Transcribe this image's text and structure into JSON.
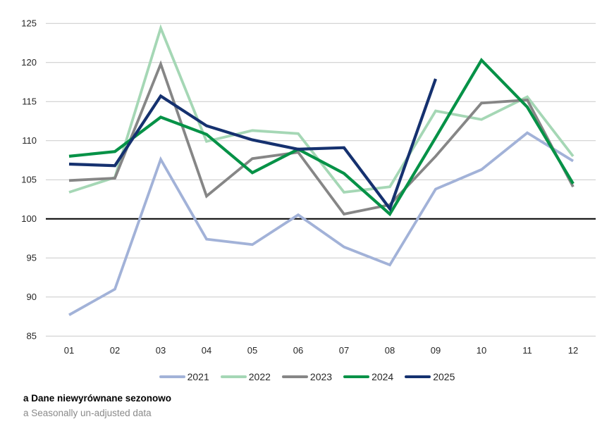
{
  "chart_data": {
    "type": "line",
    "title": "",
    "xlabel": "",
    "ylabel": "",
    "x_labels": [
      "01",
      "02",
      "03",
      "04",
      "05",
      "06",
      "07",
      "08",
      "09",
      "10",
      "11",
      "12"
    ],
    "y_ticks": [
      85,
      90,
      95,
      100,
      105,
      110,
      115,
      120,
      125
    ],
    "ylim": [
      85,
      125
    ],
    "baseline": 100,
    "grid": true,
    "legend_position": "bottom",
    "series": [
      {
        "name": "2021",
        "color": "#a2b2d8",
        "values": [
          87.7,
          91.0,
          107.6,
          97.4,
          96.7,
          100.5,
          96.4,
          94.1,
          103.8,
          106.3,
          111.0,
          107.4
        ]
      },
      {
        "name": "2022",
        "color": "#a5d7b5",
        "values": [
          103.4,
          105.3,
          124.4,
          109.9,
          111.3,
          110.9,
          103.4,
          104.1,
          113.8,
          112.7,
          115.6,
          108.0
        ]
      },
      {
        "name": "2023",
        "color": "#868686",
        "values": [
          104.9,
          105.2,
          119.8,
          102.9,
          107.7,
          108.5,
          100.6,
          101.8,
          108.0,
          114.8,
          115.2,
          104.1
        ]
      },
      {
        "name": "2024",
        "color": "#069247",
        "values": [
          108.0,
          108.6,
          113.0,
          110.8,
          105.9,
          108.9,
          105.8,
          100.6,
          110.4,
          120.3,
          114.3,
          104.5
        ]
      },
      {
        "name": "2025",
        "color": "#15316f",
        "values": [
          107.0,
          106.8,
          115.7,
          111.9,
          110.1,
          108.9,
          109.1,
          101.3,
          117.9
        ]
      }
    ]
  },
  "colors": {
    "gridline": "#c9c9c9",
    "baseline": "#000000",
    "tick_text": "#262626",
    "footnote_en": "#8a8a8a"
  },
  "footnotes": {
    "pl": "a Dane niewyrównane sezonowo",
    "en": "a Seasonally un-adjusted data"
  }
}
